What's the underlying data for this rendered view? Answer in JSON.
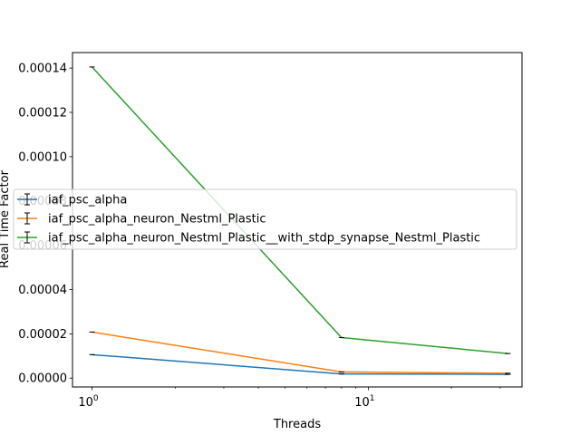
{
  "chart_data": {
    "type": "line",
    "title": "",
    "xlabel": "Threads",
    "ylabel": "Real Time Factor",
    "xscale": "log",
    "xlim": [
      0.85,
      36
    ],
    "ylim": [
      -4e-06,
      0.000147
    ],
    "x": [
      1,
      8,
      32
    ],
    "x_ticks": [
      {
        "value": 1,
        "base": "10",
        "exp": "0"
      },
      {
        "value": 10,
        "base": "10",
        "exp": "1"
      }
    ],
    "y_ticks": [
      {
        "value": 0,
        "label": "0.00000"
      },
      {
        "value": 2e-05,
        "label": "0.00002"
      },
      {
        "value": 4e-05,
        "label": "0.00004"
      },
      {
        "value": 6e-05,
        "label": "0.00006"
      },
      {
        "value": 8e-05,
        "label": "0.00008"
      },
      {
        "value": 0.0001,
        "label": "0.00010"
      },
      {
        "value": 0.00012,
        "label": "0.00012"
      },
      {
        "value": 0.00014,
        "label": "0.00014"
      }
    ],
    "series": [
      {
        "name": "iaf_psc_alpha",
        "color": "#1f77b4",
        "values": [
          1.06e-05,
          1.9e-06,
          1.7e-06
        ]
      },
      {
        "name": "iaf_psc_alpha_neuron_Nestml_Plastic",
        "color": "#ff7f0e",
        "values": [
          2.08e-05,
          2.8e-06,
          2.2e-06
        ]
      },
      {
        "name": "iaf_psc_alpha_neuron_Nestml_Plastic__with_stdp_synapse_Nestml_Plastic",
        "color": "#2ca02c",
        "values": [
          0.0001405,
          1.83e-05,
          1.11e-05
        ]
      }
    ],
    "error_bars": true,
    "grid": false,
    "legend_position": "center-left"
  }
}
